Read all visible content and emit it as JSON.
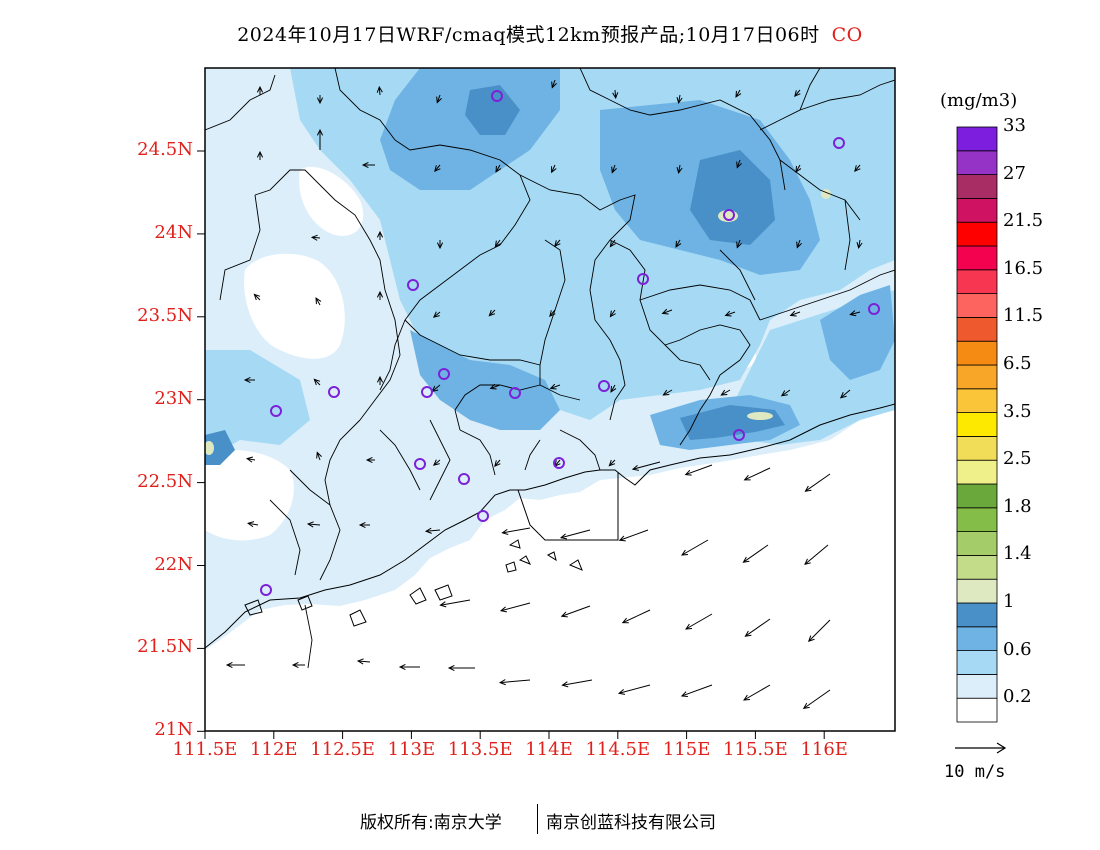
{
  "title": {
    "main": "2024年10月17日WRF/cmaq模式12km预报产品;10月17日06时",
    "species": "CO"
  },
  "axes": {
    "lat_labels": [
      "24.5N",
      "24N",
      "23.5N",
      "23N",
      "22.5N",
      "22N",
      "21.5N",
      "21N"
    ],
    "lon_labels": [
      "111.5E",
      "112E",
      "112.5E",
      "113E",
      "113.5E",
      "114E",
      "114.5E",
      "115E",
      "115.5E",
      "116E"
    ],
    "label_color": "#e0201b"
  },
  "colorbar": {
    "unit": "(mg/m3)",
    "colors": [
      "#ffffff",
      "#dbeefa",
      "#a6daf4",
      "#6eb3e3",
      "#4990c8",
      "#dfe9c1",
      "#c3dc89",
      "#a4cc68",
      "#84bd47",
      "#6aa83b",
      "#f0f08a",
      "#f2dd58",
      "#fde900",
      "#fbc53a",
      "#f8a628",
      "#f68b14",
      "#ee5a2d",
      "#fd6460",
      "#f73752",
      "#f3034f",
      "#fe0000",
      "#cf1262",
      "#a92d65",
      "#9533c6",
      "#7d1ede"
    ],
    "labels": [
      "0.2",
      "0.6",
      "1",
      "1.4",
      "1.8",
      "2.5",
      "3.5",
      "6.5",
      "11.5",
      "16.5",
      "21.5",
      "27",
      "33"
    ]
  },
  "wind_reference": "10 m/s",
  "footer": {
    "left": "版权所有:南京大学",
    "right": "南京创蓝科技有限公司"
  }
}
